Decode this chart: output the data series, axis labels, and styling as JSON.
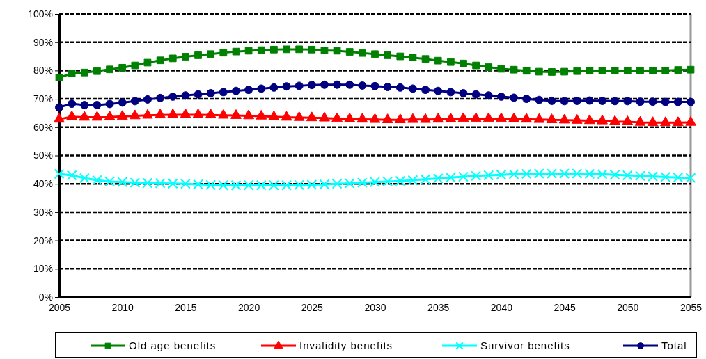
{
  "chart_data": {
    "type": "line",
    "x": [
      2005,
      2006,
      2007,
      2008,
      2009,
      2010,
      2011,
      2012,
      2013,
      2014,
      2015,
      2016,
      2017,
      2018,
      2019,
      2020,
      2021,
      2022,
      2023,
      2024,
      2025,
      2026,
      2027,
      2028,
      2029,
      2030,
      2031,
      2032,
      2033,
      2034,
      2035,
      2036,
      2037,
      2038,
      2039,
      2040,
      2041,
      2042,
      2043,
      2044,
      2045,
      2046,
      2047,
      2048,
      2049,
      2050,
      2051,
      2052,
      2053,
      2054,
      2055
    ],
    "xlim": [
      2005,
      2055
    ],
    "xticks": [
      2005,
      2010,
      2015,
      2020,
      2025,
      2030,
      2035,
      2040,
      2045,
      2050,
      2055
    ],
    "ylim": [
      0,
      100
    ],
    "yticks": [
      {
        "value": 0,
        "label": "0%"
      },
      {
        "value": 10,
        "label": "10%"
      },
      {
        "value": 20,
        "label": "20%"
      },
      {
        "value": 30,
        "label": "30%"
      },
      {
        "value": 40,
        "label": "40%"
      },
      {
        "value": 50,
        "label": "50%"
      },
      {
        "value": 60,
        "label": "60%"
      },
      {
        "value": 70,
        "label": "70%"
      },
      {
        "value": 80,
        "label": "80%"
      },
      {
        "value": 90,
        "label": "90%"
      },
      {
        "value": 100,
        "label": "100%"
      }
    ],
    "grid": "y",
    "legend": "bottom",
    "line_style": "solid",
    "series": [
      {
        "name": "Old age benefits",
        "color": "#008000",
        "marker": "square",
        "values": [
          77.5,
          79,
          79.3,
          79.8,
          80.4,
          81,
          81.8,
          82.8,
          83.6,
          84.3,
          84.9,
          85.4,
          85.8,
          86.3,
          86.7,
          87,
          87.2,
          87.4,
          87.5,
          87.5,
          87.4,
          87.1,
          87,
          86.6,
          86.2,
          85.8,
          85.4,
          85,
          84.6,
          84.1,
          83.5,
          83,
          82.5,
          81.8,
          81.2,
          80.6,
          80.3,
          79.9,
          79.6,
          79.5,
          79.6,
          79.8,
          80,
          80,
          80,
          80,
          80,
          80,
          80,
          80.2,
          80.3
        ]
      },
      {
        "name": "Invalidity benefits",
        "color": "#ff0000",
        "marker": "triangle",
        "values": [
          62.8,
          63.7,
          63.5,
          63.5,
          63.6,
          63.8,
          64,
          64.2,
          64.3,
          64.4,
          64.4,
          64.4,
          64.3,
          64.2,
          64.1,
          64,
          63.9,
          63.7,
          63.5,
          63.4,
          63.3,
          63.2,
          63,
          62.9,
          62.8,
          62.7,
          62.6,
          62.6,
          62.7,
          62.7,
          62.8,
          62.9,
          63,
          63,
          63,
          63,
          62.9,
          62.8,
          62.7,
          62.6,
          62.5,
          62.4,
          62.3,
          62.2,
          62,
          61.9,
          61.7,
          61.6,
          61.6,
          61.6,
          61.7
        ]
      },
      {
        "name": "Survivor benefits",
        "color": "#00ffff",
        "marker": "cross",
        "values": [
          43.5,
          43,
          42,
          41.3,
          40.8,
          40.6,
          40.4,
          40.3,
          40.2,
          40.1,
          40,
          39.8,
          39.6,
          39.5,
          39.5,
          39.5,
          39.5,
          39.5,
          39.5,
          39.6,
          39.7,
          39.8,
          40,
          40.2,
          40.4,
          40.6,
          40.8,
          41,
          41.3,
          41.6,
          41.9,
          42.2,
          42.5,
          42.8,
          43,
          43.2,
          43.4,
          43.5,
          43.6,
          43.6,
          43.6,
          43.6,
          43.5,
          43.4,
          43.2,
          43,
          42.8,
          42.6,
          42.4,
          42.2,
          42.1
        ]
      },
      {
        "name": "Total",
        "color": "#000080",
        "marker": "circle",
        "values": [
          67,
          68.3,
          67.8,
          67.8,
          68.2,
          68.7,
          69.2,
          69.8,
          70.3,
          70.8,
          71.2,
          71.6,
          72,
          72.4,
          72.8,
          73.2,
          73.6,
          74,
          74.4,
          74.6,
          74.9,
          75,
          75,
          75,
          74.7,
          74.5,
          74.2,
          74,
          73.6,
          73.2,
          72.8,
          72.4,
          72,
          71.6,
          71.2,
          70.8,
          70.4,
          70,
          69.6,
          69.3,
          69.2,
          69.3,
          69.4,
          69.3,
          69.2,
          69.2,
          69,
          69,
          68.9,
          68.9,
          68.9
        ]
      }
    ]
  }
}
